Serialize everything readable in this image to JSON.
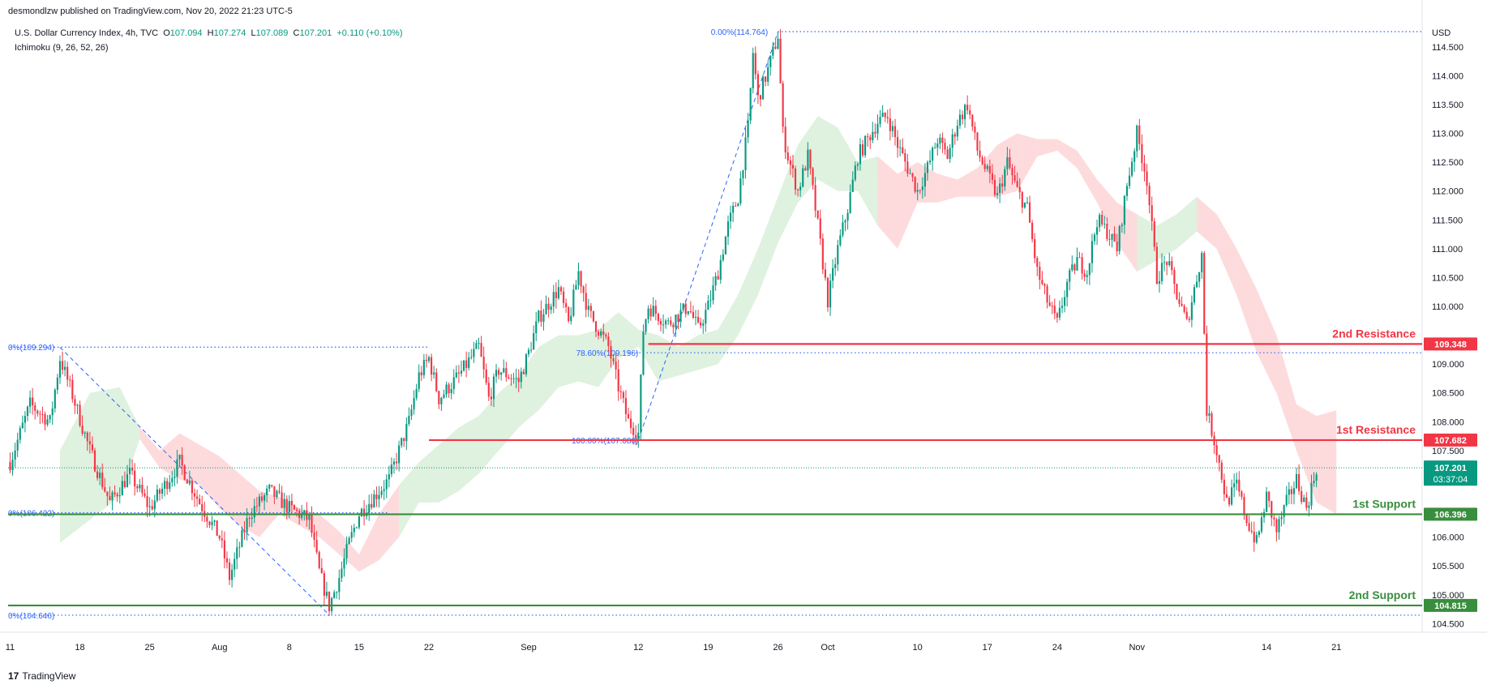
{
  "header": {
    "publisher": "desmondlzw published on TradingView.com, Nov 20, 2022 21:23 UTC-5",
    "symbol": "U.S. Dollar Currency Index, 4h, TVC",
    "o_label": "O",
    "o_value": "107.094",
    "h_label": "H",
    "h_value": "107.274",
    "l_label": "L",
    "l_value": "107.089",
    "c_label": "C",
    "c_value": "107.201",
    "change": "+0.110 (+0.10%)",
    "indicator": "Ichimoku (9, 26, 52, 26)"
  },
  "footer": {
    "logo_mark": "17",
    "brand": "TradingView"
  },
  "chart_data": {
    "type": "candlestick",
    "currency": "USD",
    "y_ticks": [
      "104.500",
      "105.000",
      "105.500",
      "106.000",
      "106.500",
      "107.000",
      "107.500",
      "108.000",
      "108.500",
      "109.000",
      "109.500",
      "110.000",
      "110.500",
      "111.000",
      "111.500",
      "112.000",
      "112.500",
      "113.000",
      "113.500",
      "114.000",
      "114.500"
    ],
    "ylim": [
      104.35,
      115.2
    ],
    "x_ticks": [
      {
        "label": "11",
        "t": 0
      },
      {
        "label": "18",
        "t": 7
      },
      {
        "label": "25",
        "t": 14
      },
      {
        "label": "Aug",
        "t": 21
      },
      {
        "label": "8",
        "t": 28
      },
      {
        "label": "15",
        "t": 35
      },
      {
        "label": "22",
        "t": 42
      },
      {
        "label": "Sep",
        "t": 52
      },
      {
        "label": "12",
        "t": 63
      },
      {
        "label": "19",
        "t": 70
      },
      {
        "label": "26",
        "t": 77
      },
      {
        "label": "Oct",
        "t": 82
      },
      {
        "label": "10",
        "t": 91
      },
      {
        "label": "17",
        "t": 98
      },
      {
        "label": "24",
        "t": 105
      },
      {
        "label": "Nov",
        "t": 113
      },
      {
        "label": "14",
        "t": 126
      },
      {
        "label": "21",
        "t": 133
      }
    ],
    "xlim": [
      -0.2,
      141.6
    ],
    "price_path": [
      [
        0,
        107.3
      ],
      [
        2,
        108.3
      ],
      [
        4,
        108.0
      ],
      [
        5,
        109.1
      ],
      [
        6,
        108.6
      ],
      [
        8,
        107.5
      ],
      [
        10,
        106.6
      ],
      [
        12,
        107.1
      ],
      [
        14,
        106.5
      ],
      [
        17,
        107.3
      ],
      [
        19,
        106.6
      ],
      [
        21,
        106.0
      ],
      [
        22,
        105.3
      ],
      [
        24,
        106.4
      ],
      [
        26,
        106.8
      ],
      [
        28,
        106.5
      ],
      [
        30,
        106.3
      ],
      [
        31,
        105.4
      ],
      [
        32,
        104.8
      ],
      [
        33,
        105.3
      ],
      [
        34,
        105.9
      ],
      [
        35,
        106.4
      ],
      [
        36,
        106.6
      ],
      [
        38,
        107.0
      ],
      [
        40,
        108.0
      ],
      [
        41,
        108.8
      ],
      [
        42,
        109.1
      ],
      [
        43,
        108.4
      ],
      [
        45,
        108.8
      ],
      [
        47,
        109.3
      ],
      [
        48,
        108.4
      ],
      [
        49,
        108.9
      ],
      [
        51,
        108.7
      ],
      [
        52,
        109.2
      ],
      [
        53,
        109.8
      ],
      [
        55,
        110.3
      ],
      [
        56,
        109.7
      ],
      [
        57,
        110.6
      ],
      [
        58,
        109.9
      ],
      [
        60,
        109.3
      ],
      [
        61,
        108.6
      ],
      [
        62,
        108.0
      ],
      [
        63,
        107.8
      ],
      [
        63.5,
        109.6
      ],
      [
        64,
        110.0
      ],
      [
        66,
        109.7
      ],
      [
        68,
        110.0
      ],
      [
        69,
        109.6
      ],
      [
        70,
        110.0
      ],
      [
        71,
        110.6
      ],
      [
        72,
        111.4
      ],
      [
        73,
        111.9
      ],
      [
        74,
        113.1
      ],
      [
        74.5,
        114.4
      ],
      [
        75,
        113.6
      ],
      [
        76,
        114.1
      ],
      [
        77,
        114.7
      ],
      [
        77.5,
        113.0
      ],
      [
        78,
        112.6
      ],
      [
        79,
        112.0
      ],
      [
        80,
        112.6
      ],
      [
        81,
        111.4
      ],
      [
        82,
        110.1
      ],
      [
        83,
        111.0
      ],
      [
        84,
        111.7
      ],
      [
        85,
        112.6
      ],
      [
        86,
        112.9
      ],
      [
        87,
        113.2
      ],
      [
        88,
        113.3
      ],
      [
        89,
        112.8
      ],
      [
        90,
        112.4
      ],
      [
        91,
        112.0
      ],
      [
        92,
        112.4
      ],
      [
        93,
        112.9
      ],
      [
        94,
        112.6
      ],
      [
        95,
        113.2
      ],
      [
        96,
        113.5
      ],
      [
        97,
        112.7
      ],
      [
        98,
        112.3
      ],
      [
        99,
        111.9
      ],
      [
        100,
        112.5
      ],
      [
        101,
        112.0
      ],
      [
        102,
        111.7
      ],
      [
        103,
        110.6
      ],
      [
        104,
        110.1
      ],
      [
        105,
        109.7
      ],
      [
        106,
        110.4
      ],
      [
        107,
        110.8
      ],
      [
        108,
        110.6
      ],
      [
        109,
        111.5
      ],
      [
        110,
        111.3
      ],
      [
        111,
        111.0
      ],
      [
        112,
        112.1
      ],
      [
        113,
        113.0
      ],
      [
        114,
        112.2
      ],
      [
        115,
        110.5
      ],
      [
        116,
        110.8
      ],
      [
        117,
        110.2
      ],
      [
        118,
        109.7
      ],
      [
        119,
        110.5
      ],
      [
        119.5,
        110.9
      ],
      [
        120,
        108.2
      ],
      [
        121,
        107.5
      ],
      [
        122,
        106.6
      ],
      [
        123,
        106.9
      ],
      [
        124,
        106.3
      ],
      [
        125,
        105.9
      ],
      [
        126,
        106.7
      ],
      [
        127,
        106.1
      ],
      [
        128,
        106.6
      ],
      [
        129,
        107.0
      ],
      [
        130,
        106.5
      ],
      [
        131,
        107.2
      ]
    ],
    "cloud_points": [
      [
        5,
        105.9,
        107.5
      ],
      [
        8,
        106.3,
        108.5
      ],
      [
        11,
        106.7,
        108.6
      ],
      [
        13,
        107.7,
        107.9
      ],
      [
        15,
        107.2,
        107.5
      ],
      [
        17,
        107.0,
        107.8
      ],
      [
        19,
        106.9,
        107.6
      ],
      [
        21,
        106.5,
        107.4
      ],
      [
        23,
        106.2,
        107.1
      ],
      [
        25,
        106.0,
        106.8
      ],
      [
        27,
        106.4,
        106.7
      ],
      [
        29,
        106.2,
        106.5
      ],
      [
        31,
        106.0,
        106.4
      ],
      [
        33,
        105.7,
        106.1
      ],
      [
        35,
        105.4,
        105.7
      ],
      [
        37,
        105.6,
        106.4
      ],
      [
        39,
        106.0,
        106.9
      ],
      [
        41,
        106.6,
        107.3
      ],
      [
        43,
        106.6,
        107.6
      ],
      [
        45,
        106.8,
        107.9
      ],
      [
        47,
        107.1,
        108.1
      ],
      [
        49,
        107.5,
        108.5
      ],
      [
        51,
        107.9,
        108.8
      ],
      [
        53,
        108.2,
        109.3
      ],
      [
        55,
        108.6,
        109.5
      ],
      [
        57,
        108.7,
        109.5
      ],
      [
        59,
        108.6,
        109.6
      ],
      [
        61,
        109.1,
        109.9
      ],
      [
        63,
        109.3,
        109.6
      ],
      [
        65,
        108.7,
        109.5
      ],
      [
        67,
        108.8,
        109.3
      ],
      [
        69,
        108.9,
        109.5
      ],
      [
        71,
        109.0,
        109.6
      ],
      [
        73,
        109.5,
        110.2
      ],
      [
        75,
        110.2,
        111.0
      ],
      [
        77,
        111.1,
        111.9
      ],
      [
        79,
        111.8,
        112.8
      ],
      [
        81,
        112.2,
        113.3
      ],
      [
        83,
        112.0,
        113.1
      ],
      [
        85,
        112.0,
        112.5
      ],
      [
        87,
        111.4,
        112.6
      ],
      [
        89,
        111.0,
        112.3
      ],
      [
        91,
        111.8,
        112.5
      ],
      [
        93,
        111.8,
        112.3
      ],
      [
        95,
        111.9,
        112.2
      ],
      [
        97,
        111.9,
        112.4
      ],
      [
        99,
        111.9,
        112.8
      ],
      [
        101,
        112.0,
        113.0
      ],
      [
        103,
        112.6,
        112.9
      ],
      [
        105,
        112.7,
        112.9
      ],
      [
        107,
        112.4,
        112.7
      ],
      [
        109,
        111.8,
        112.2
      ],
      [
        111,
        111.1,
        111.8
      ],
      [
        113,
        110.6,
        111.6
      ],
      [
        115,
        110.8,
        111.4
      ],
      [
        117,
        111.0,
        111.6
      ],
      [
        119,
        111.3,
        111.9
      ],
      [
        121,
        111.0,
        111.6
      ],
      [
        123,
        110.2,
        111.0
      ],
      [
        125,
        109.2,
        110.3
      ],
      [
        127,
        108.5,
        109.5
      ],
      [
        129,
        107.5,
        108.3
      ],
      [
        131,
        106.6,
        108.1
      ],
      [
        133,
        106.4,
        108.2
      ]
    ],
    "levels": [
      {
        "name": "2nd Resistance",
        "value": "109.348",
        "price": 109.348,
        "color": "#f23645",
        "start_t": 64
      },
      {
        "name": "1st Resistance",
        "value": "107.682",
        "price": 107.682,
        "color": "#f23645",
        "start_t": 42
      },
      {
        "name": "1st Support",
        "value": "106.396",
        "price": 106.396,
        "color": "#388e3c",
        "start_t": -0.2
      },
      {
        "name": "2nd Support",
        "value": "104.815",
        "price": 104.815,
        "color": "#388e3c",
        "start_t": -0.2
      }
    ],
    "last_price": {
      "value": "107.201",
      "countdown": "03:37:04",
      "price": 107.201,
      "color": "#089981"
    },
    "fib_lines": [
      {
        "label": "0.00%(114.764)",
        "price": 114.764,
        "t0": 77,
        "t1": 141.6,
        "anchor": "end",
        "label_t": 76
      },
      {
        "label": "78.60%(109.196)",
        "price": 109.196,
        "t0": 62,
        "t1": 141.6,
        "anchor": "end",
        "label_t": 63
      },
      {
        "label": "100.00%(107.680)",
        "price": 107.68,
        "t0": 63,
        "t1": 64.5,
        "anchor": "end",
        "label_t": 63
      },
      {
        "label": "0%(109.294)",
        "price": 109.294,
        "t0": 0,
        "t1": 42,
        "anchor": "start",
        "label_t": -0.2
      },
      {
        "label": "0%(106.422)",
        "price": 106.422,
        "t0": 0,
        "t1": 38,
        "anchor": "start",
        "label_t": -0.2
      },
      {
        "label": "0%(104.646)",
        "price": 104.646,
        "t0": 0,
        "t1": 141.6,
        "anchor": "start",
        "label_t": -0.2
      }
    ],
    "trend_lines": [
      {
        "from": [
          5,
          109.29
        ],
        "to": [
          32,
          104.65
        ]
      },
      {
        "from": [
          63,
          107.68
        ],
        "to": [
          77,
          114.76
        ]
      }
    ]
  }
}
